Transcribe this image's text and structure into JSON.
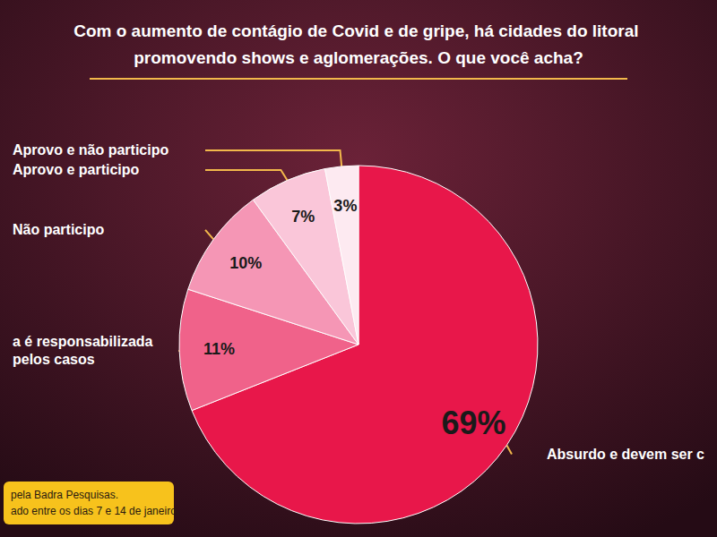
{
  "chart_data": {
    "type": "pie",
    "title": "Com o aumento de contágio de Covid e de gripe, há cidades do litoral promovendo shows e aglomerações. O que você acha?",
    "categories": [
      "Absurdo e devem ser c",
      "a é responsabilizada pelos casos",
      "Não participo",
      "Aprovo e participo",
      "Aprovo e não participo"
    ],
    "values": [
      69,
      11,
      10,
      7,
      3
    ],
    "value_labels": [
      "69%",
      "11%",
      "10%",
      "7%",
      "3%"
    ],
    "colors": [
      "#e8174a",
      "#f0628a",
      "#f596b5",
      "#fac6d9",
      "#fdeaf1"
    ],
    "data_labels": true,
    "source": [
      "pela Badra Pesquisas.",
      "ado entre os dias 7 e 14 de janeiro."
    ]
  }
}
